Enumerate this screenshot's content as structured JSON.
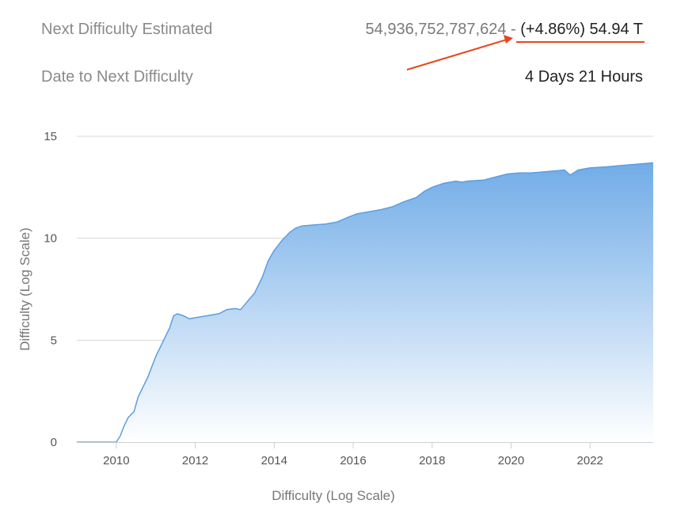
{
  "stats": {
    "next_difficulty": {
      "label": "Next Difficulty Estimated",
      "value": "54,936,752,787,624",
      "separator": "-",
      "change": "(+4.86%) 54.94 T"
    },
    "next_date": {
      "label": "Date to Next Difficulty",
      "value": "4 Days 21 Hours"
    }
  },
  "colors": {
    "arrow": "#e8461f",
    "area_top": "#6aa8e6",
    "area_bottom": "#ffffff",
    "line": "#5b9ee0",
    "grid": "#d8d8d8"
  },
  "chart_data": {
    "type": "area",
    "title": "",
    "xlabel": "Difficulty (Log Scale)",
    "ylabel": "Difficulty (Log Scale)",
    "xlim": [
      2009.0,
      2023.6
    ],
    "ylim": [
      0,
      15
    ],
    "x_ticks": [
      "2010",
      "2012",
      "2014",
      "2016",
      "2018",
      "2020",
      "2022"
    ],
    "y_ticks": [
      "0",
      "5",
      "10",
      "15"
    ],
    "grid": true,
    "legend": "none",
    "x": [
      2009.0,
      2009.5,
      2010.0,
      2010.1,
      2010.2,
      2010.3,
      2010.45,
      2010.55,
      2010.8,
      2011.0,
      2011.2,
      2011.35,
      2011.45,
      2011.55,
      2011.7,
      2011.85,
      2012.0,
      2012.3,
      2012.6,
      2012.8,
      2013.0,
      2013.15,
      2013.3,
      2013.5,
      2013.7,
      2013.85,
      2014.0,
      2014.2,
      2014.4,
      2014.55,
      2014.7,
      2015.0,
      2015.3,
      2015.6,
      2015.9,
      2016.1,
      2016.4,
      2016.7,
      2017.0,
      2017.3,
      2017.6,
      2017.8,
      2018.0,
      2018.3,
      2018.6,
      2018.75,
      2018.9,
      2019.3,
      2019.6,
      2019.9,
      2020.2,
      2020.5,
      2020.8,
      2021.1,
      2021.35,
      2021.5,
      2021.7,
      2022.0,
      2022.4,
      2022.7,
      2023.0,
      2023.3,
      2023.6
    ],
    "values": [
      0.0,
      0.0,
      0.0,
      0.3,
      0.8,
      1.2,
      1.5,
      2.2,
      3.2,
      4.2,
      5.0,
      5.6,
      6.2,
      6.3,
      6.2,
      6.05,
      6.1,
      6.2,
      6.3,
      6.5,
      6.55,
      6.5,
      6.85,
      7.3,
      8.1,
      8.9,
      9.4,
      9.9,
      10.3,
      10.5,
      10.6,
      10.65,
      10.7,
      10.8,
      11.05,
      11.2,
      11.3,
      11.4,
      11.55,
      11.8,
      12.0,
      12.3,
      12.5,
      12.7,
      12.8,
      12.75,
      12.8,
      12.85,
      13.0,
      13.15,
      13.2,
      13.2,
      13.25,
      13.3,
      13.35,
      13.1,
      13.35,
      13.45,
      13.5,
      13.55,
      13.6,
      13.65,
      13.7
    ]
  }
}
